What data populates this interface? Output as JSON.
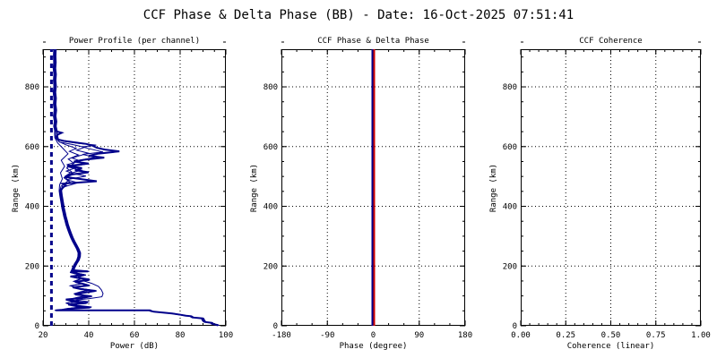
{
  "header": {
    "title": "CCF Phase & Delta Phase (BB) - Date: 16-Oct-2025 07:51:41"
  },
  "colors": {
    "line_navy": "#00008B",
    "line_red": "#CC0000",
    "axis": "#000000",
    "background": "#FFFFFF"
  },
  "chart_data": [
    {
      "type": "line",
      "title": "Power Profile (per channel)",
      "xlabel": "Power (dB)",
      "ylabel": "Range (km)",
      "xlim": [
        20,
        100
      ],
      "ylim": [
        0,
        926
      ],
      "xminor": 5,
      "yminor": 50,
      "grid": "dotted",
      "xticks": {
        "values": [
          20,
          40,
          60,
          80,
          100
        ],
        "labels": [
          "20",
          "40",
          "60",
          "80",
          "100"
        ]
      },
      "yticks": {
        "values": [
          0,
          200,
          400,
          600,
          800
        ],
        "labels": [
          "0",
          "200",
          "400",
          "600",
          "800"
        ]
      },
      "noise_marker_db": 23.7,
      "segments": {
        "bottom": [
          [
            96.5,
            0
          ],
          [
            96.2,
            3
          ],
          [
            94.2,
            6
          ],
          [
            93.8,
            10
          ],
          [
            90.8,
            13
          ],
          [
            90.2,
            18
          ],
          [
            89.8,
            25
          ],
          [
            85.4,
            28
          ],
          [
            84.8,
            32
          ],
          [
            82.5,
            34
          ],
          [
            80.2,
            37
          ],
          [
            76.5,
            41
          ],
          [
            72.5,
            44
          ],
          [
            68.5,
            47
          ],
          [
            67,
            50
          ],
          [
            66.8,
            51.5
          ],
          [
            25.6,
            51.5
          ]
        ],
        "cluster_a": [
          [
            28,
            53
          ],
          [
            31,
            57
          ],
          [
            40.5,
            61
          ],
          [
            34.5,
            66
          ],
          [
            31,
            71
          ],
          [
            39,
            76
          ],
          [
            33,
            82
          ],
          [
            30,
            88
          ],
          [
            37,
            93
          ],
          [
            41,
            99
          ],
          [
            34,
            105
          ],
          [
            38,
            111
          ],
          [
            43,
            117
          ],
          [
            36.5,
            123
          ],
          [
            33,
            129
          ],
          [
            40,
            135
          ],
          [
            37,
            141
          ],
          [
            34,
            147
          ],
          [
            40,
            153
          ],
          [
            36,
            159
          ],
          [
            32,
            165
          ],
          [
            38,
            170
          ],
          [
            34,
            176
          ],
          [
            32,
            181
          ],
          [
            39.7,
            182
          ],
          [
            33,
            186
          ]
        ],
        "cluster_b": [
          [
            28.5,
            53
          ],
          [
            32,
            58
          ],
          [
            41,
            63
          ],
          [
            35,
            68
          ],
          [
            32,
            74
          ],
          [
            40,
            80
          ],
          [
            34,
            86
          ],
          [
            40,
            91
          ],
          [
            45.5,
            97
          ],
          [
            46,
            108
          ],
          [
            45.3,
            120
          ],
          [
            44,
            132
          ],
          [
            41,
            142
          ],
          [
            37.5,
            150
          ],
          [
            40,
            156
          ],
          [
            35,
            163
          ],
          [
            38.5,
            170
          ],
          [
            34,
            177
          ],
          [
            32.5,
            181
          ],
          [
            39,
            183
          ],
          [
            33,
            186
          ]
        ],
        "cluster_c": [
          [
            29,
            54
          ],
          [
            33,
            59
          ],
          [
            38,
            64
          ],
          [
            33,
            70
          ],
          [
            30.5,
            76
          ],
          [
            36,
            82
          ],
          [
            32,
            88
          ],
          [
            35,
            94
          ],
          [
            39,
            100
          ],
          [
            34,
            107
          ],
          [
            37,
            114
          ],
          [
            41,
            120
          ],
          [
            35,
            127
          ],
          [
            32.5,
            134
          ],
          [
            38,
            141
          ],
          [
            34,
            149
          ],
          [
            37,
            157
          ],
          [
            33,
            164
          ],
          [
            36,
            171
          ],
          [
            32.5,
            178
          ],
          [
            33,
            186
          ]
        ],
        "mid": [
          [
            33,
            186
          ],
          [
            33.5,
            196
          ],
          [
            34.3,
            208
          ],
          [
            35.3,
            220
          ],
          [
            35.8,
            232
          ],
          [
            35.9,
            244
          ],
          [
            35.2,
            257
          ],
          [
            34.3,
            270
          ],
          [
            33.4,
            283
          ],
          [
            32.6,
            296
          ],
          [
            31.9,
            310
          ],
          [
            31.2,
            324
          ],
          [
            30.6,
            338
          ],
          [
            30.1,
            352
          ],
          [
            29.6,
            366
          ],
          [
            29.2,
            380
          ],
          [
            28.8,
            394
          ],
          [
            28.5,
            408
          ],
          [
            28.2,
            422
          ],
          [
            27.9,
            436
          ],
          [
            27.6,
            452
          ]
        ],
        "spikes_a": [
          [
            27.6,
            452
          ],
          [
            28.5,
            462
          ],
          [
            30,
            470
          ],
          [
            28.5,
            476
          ],
          [
            43.5,
            484
          ],
          [
            37,
            491
          ],
          [
            30,
            498
          ],
          [
            31.5,
            506
          ],
          [
            40,
            514
          ],
          [
            34,
            521
          ],
          [
            37,
            528
          ],
          [
            30.5,
            535
          ],
          [
            40,
            543
          ],
          [
            33.5,
            550
          ],
          [
            38,
            556
          ],
          [
            46.8,
            563
          ],
          [
            40,
            569
          ],
          [
            44,
            576
          ],
          [
            53.4,
            584
          ],
          [
            47,
            590
          ],
          [
            43.5,
            596
          ],
          [
            42,
            602
          ],
          [
            39,
            609
          ],
          [
            34,
            614
          ],
          [
            29,
            619
          ],
          [
            26.5,
            624
          ],
          [
            25.8,
            632
          ],
          [
            26.5,
            640
          ],
          [
            28.2,
            646
          ],
          [
            26,
            651
          ],
          [
            25.6,
            655
          ]
        ],
        "spikes_b": [
          [
            27.6,
            452
          ],
          [
            29,
            465
          ],
          [
            35,
            479
          ],
          [
            30,
            489
          ],
          [
            38.5,
            501
          ],
          [
            32,
            511
          ],
          [
            36.5,
            521
          ],
          [
            31,
            531
          ],
          [
            38.2,
            541
          ],
          [
            33.5,
            551
          ],
          [
            42.5,
            564
          ],
          [
            37,
            574
          ],
          [
            46,
            582
          ],
          [
            41,
            591
          ],
          [
            37,
            599
          ],
          [
            43,
            605
          ],
          [
            35,
            611
          ],
          [
            28.5,
            618
          ],
          [
            26,
            626
          ],
          [
            25.8,
            640
          ],
          [
            25.6,
            655
          ]
        ],
        "spikes_c": [
          [
            27.6,
            452
          ],
          [
            28.2,
            468
          ],
          [
            32,
            482
          ],
          [
            29.5,
            495
          ],
          [
            34,
            508
          ],
          [
            30.5,
            518
          ],
          [
            35,
            530
          ],
          [
            31,
            540
          ],
          [
            36.5,
            552
          ],
          [
            33,
            562
          ],
          [
            40,
            578
          ],
          [
            35,
            588
          ],
          [
            38.5,
            598
          ],
          [
            33,
            607
          ],
          [
            27.5,
            615
          ],
          [
            25.9,
            628
          ],
          [
            25.6,
            655
          ]
        ],
        "spikes_d": [
          [
            27.6,
            452
          ],
          [
            28,
            470
          ],
          [
            30.5,
            486
          ],
          [
            29,
            500
          ],
          [
            32,
            515
          ],
          [
            29.8,
            528
          ],
          [
            33,
            544
          ],
          [
            30.5,
            558
          ],
          [
            35,
            572
          ],
          [
            31,
            584
          ],
          [
            34,
            594
          ],
          [
            29.5,
            606
          ],
          [
            26.5,
            616
          ],
          [
            25.7,
            640
          ],
          [
            25.6,
            655
          ]
        ],
        "spikes_e": [
          [
            27.6,
            452
          ],
          [
            27.8,
            472
          ],
          [
            29,
            492
          ],
          [
            28.2,
            512
          ],
          [
            30,
            534
          ],
          [
            28.5,
            554
          ],
          [
            31.5,
            576
          ],
          [
            29,
            596
          ],
          [
            27,
            612
          ],
          [
            25.7,
            630
          ],
          [
            25.6,
            655
          ]
        ],
        "top": [
          [
            25.6,
            655
          ],
          [
            25.2,
            668
          ],
          [
            25.5,
            684
          ],
          [
            25.1,
            702
          ],
          [
            25.4,
            722
          ],
          [
            25.1,
            742
          ],
          [
            25.3,
            762
          ],
          [
            25.0,
            782
          ],
          [
            25.3,
            802
          ],
          [
            25.1,
            822
          ],
          [
            25.3,
            842
          ],
          [
            25.0,
            862
          ],
          [
            25.2,
            882
          ],
          [
            25.1,
            902
          ],
          [
            25.2,
            926
          ]
        ]
      },
      "series": [
        {
          "name": "noise-level-marker",
          "points": [
            [
              23.7,
              0
            ],
            [
              23.7,
              926
            ]
          ],
          "color": "#00008B",
          "width": 3,
          "dash": "5 4"
        },
        {
          "name": "channel-1",
          "parts": [
            "bottom",
            "cluster_a",
            "mid",
            "spikes_a",
            "top"
          ],
          "color": "#00008B",
          "width": 2
        },
        {
          "name": "channel-2",
          "parts": [
            "bottom",
            "cluster_b",
            "mid",
            "spikes_b",
            "top"
          ],
          "color": "#00008B",
          "width": 1,
          "dx": 0.7
        },
        {
          "name": "channel-3",
          "parts": [
            "bottom",
            "cluster_c",
            "mid",
            "spikes_c",
            "top"
          ],
          "color": "#00008B",
          "width": 1,
          "dx": -0.7
        },
        {
          "name": "channel-4",
          "parts": [
            "bottom",
            "cluster_a",
            "mid",
            "spikes_d",
            "top"
          ],
          "color": "#00008B",
          "width": 1,
          "dx": 1.4
        },
        {
          "name": "channel-5",
          "parts": [
            "bottom",
            "cluster_c",
            "mid",
            "spikes_e",
            "top"
          ],
          "color": "#00008B",
          "width": 1,
          "dx": -1.4
        }
      ]
    },
    {
      "type": "line",
      "title": "CCF Phase & Delta Phase",
      "xlabel": "Phase (degree)",
      "ylabel": "Range (km)",
      "xlim": [
        -180,
        180
      ],
      "ylim": [
        0,
        926
      ],
      "xminor": 30,
      "yminor": 50,
      "grid": "dotted",
      "xticks": {
        "values": [
          -180,
          -90,
          0,
          90,
          180
        ],
        "labels": [
          "-180",
          "-90",
          "0",
          "90",
          "180"
        ]
      },
      "yticks": {
        "values": [
          0,
          200,
          400,
          600,
          800
        ],
        "labels": [
          "0",
          "200",
          "400",
          "600",
          "800"
        ]
      },
      "series": [
        {
          "name": "ccf-phase",
          "points": [
            [
              0,
              0
            ],
            [
              0,
              926
            ]
          ],
          "color": "#00008B",
          "width": 2,
          "dx": -1
        },
        {
          "name": "delta-phase",
          "points": [
            [
              0,
              0
            ],
            [
              0,
              926
            ]
          ],
          "color": "#CC0000",
          "width": 2,
          "dx": 1
        }
      ]
    },
    {
      "type": "line",
      "title": "CCF Coherence",
      "xlabel": "Coherence (linear)",
      "ylabel": "Range (km)",
      "xlim": [
        0,
        1
      ],
      "ylim": [
        0,
        926
      ],
      "xminor": 0.05,
      "yminor": 50,
      "grid": "dotted",
      "xticks": {
        "values": [
          0,
          0.25,
          0.5,
          0.75,
          1
        ],
        "labels": [
          "0.00",
          "0.25",
          "0.50",
          "0.75",
          "1.00"
        ]
      },
      "yticks": {
        "values": [
          0,
          200,
          400,
          600,
          800
        ],
        "labels": [
          "0",
          "200",
          "400",
          "600",
          "800"
        ]
      },
      "series": []
    }
  ]
}
